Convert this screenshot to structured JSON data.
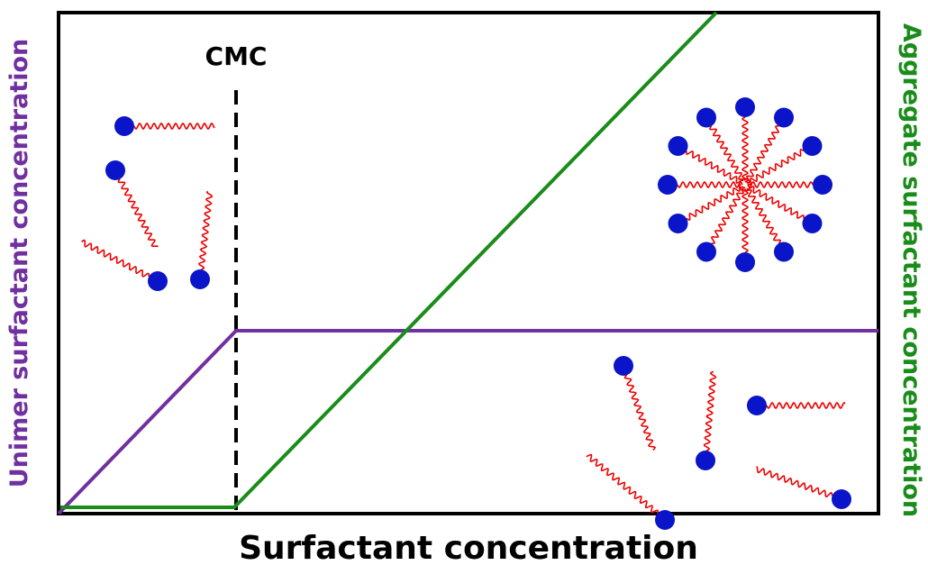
{
  "labels": {
    "cmc": "CMC",
    "x_axis": "Surfactant concentration",
    "y_axis_left": "Unimer surfactant concentration",
    "y_axis_right": "Aggregate surfactant concentration"
  }
}
